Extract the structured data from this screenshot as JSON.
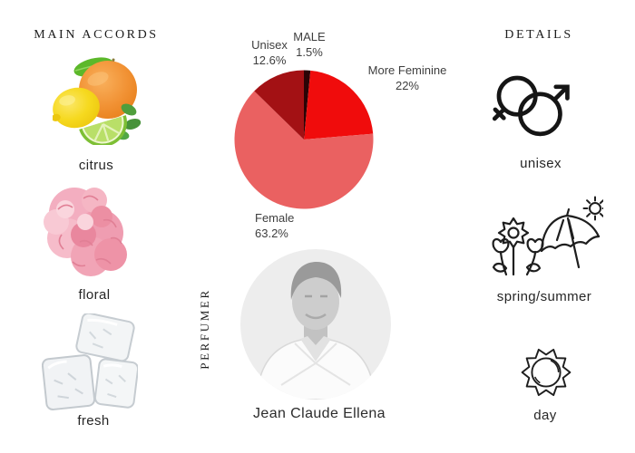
{
  "accords": {
    "header": "MAIN ACCORDS",
    "items": [
      {
        "label": "citrus",
        "image": "citrus-fruits"
      },
      {
        "label": "floral",
        "image": "pink-carnation"
      },
      {
        "label": "fresh",
        "image": "ice-cubes"
      }
    ]
  },
  "center": {
    "perfumer_section_label": "PERFUMER",
    "perfumer_name": "Jean Claude Ellena"
  },
  "details": {
    "header": "DETAILS",
    "items": [
      {
        "label": "unisex",
        "icon": "unisex-gender-icon"
      },
      {
        "label": "spring/summer",
        "icon": "flowers-umbrella-sun-icon"
      },
      {
        "label": "day",
        "icon": "sun-icon"
      }
    ]
  },
  "chart_data": {
    "type": "pie",
    "title": "",
    "start_angle_deg": -90,
    "direction": "clockwise",
    "slices": [
      {
        "label": "MALE",
        "pct_label": "1.5%",
        "value": 1.5,
        "color": "#2b0406"
      },
      {
        "label": "More Feminine",
        "pct_label": "22%",
        "value": 22,
        "color": "#f00c0c"
      },
      {
        "label": "Female",
        "pct_label": "63.2%",
        "value": 63.2,
        "color": "#ea6161"
      },
      {
        "label": "Unisex",
        "pct_label": "12.6%",
        "value": 12.6,
        "color": "#a31114"
      }
    ]
  },
  "colors": {
    "background": "#ffffff",
    "label_text": "#3e3e3e",
    "icon_stroke": "#1e1e1e"
  }
}
